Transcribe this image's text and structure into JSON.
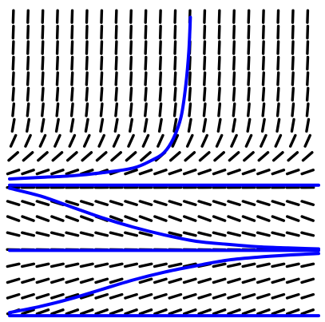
{
  "chart_data": {
    "type": "slope_field",
    "title": "",
    "xlabel": "",
    "ylabel": "",
    "grid": false,
    "legend": "none",
    "colors": {
      "background": "#ffffff",
      "segment": "#000000",
      "solution": "#0000ff"
    },
    "xlim": [
      0,
      10
    ],
    "ylim": [
      0,
      10
    ],
    "equation_form": "dy/dx = f(y)",
    "equilibria": [
      {
        "y": 0.1
      },
      {
        "y": 2.2
      },
      {
        "y": 4.3
      }
    ],
    "slope_by_y": [
      {
        "y": 0.45,
        "slope": 0.35
      },
      {
        "y": 0.95,
        "slope": 0.28
      },
      {
        "y": 1.45,
        "slope": 0.3
      },
      {
        "y": 1.95,
        "slope": 0.15
      },
      {
        "y": 2.45,
        "slope": -0.15
      },
      {
        "y": 2.95,
        "slope": -0.32
      },
      {
        "y": 3.45,
        "slope": -0.4
      },
      {
        "y": 3.95,
        "slope": -0.22
      },
      {
        "y": 4.45,
        "slope": 0.2
      },
      {
        "y": 4.95,
        "slope": 0.45
      },
      {
        "y": 5.45,
        "slope": 1.2
      },
      {
        "y": 5.95,
        "slope": 3
      },
      {
        "y": 6.45,
        "slope": 8
      },
      {
        "y": 7.45,
        "slope": 16
      },
      {
        "y": 8.45,
        "slope": 24
      },
      {
        "y": 9.45,
        "slope": 30
      }
    ],
    "solution_curves": [
      {
        "points": [
          [
            0,
            0.2
          ],
          [
            1,
            0.4
          ],
          [
            2,
            0.65
          ],
          [
            3,
            0.95
          ],
          [
            4,
            1.25
          ],
          [
            5,
            1.5
          ],
          [
            6,
            1.7
          ],
          [
            7,
            1.88
          ],
          [
            8,
            1.98
          ],
          [
            9,
            2.05
          ],
          [
            10,
            2.1
          ]
        ]
      },
      {
        "points": [
          [
            0,
            4.2
          ],
          [
            1,
            3.95
          ],
          [
            2,
            3.6
          ],
          [
            3,
            3.25
          ],
          [
            4,
            2.95
          ],
          [
            5,
            2.7
          ],
          [
            6,
            2.5
          ],
          [
            7,
            2.4
          ],
          [
            8,
            2.32
          ],
          [
            9,
            2.28
          ],
          [
            10,
            2.25
          ]
        ]
      },
      {
        "points": [
          [
            0,
            4.5
          ],
          [
            1,
            4.55
          ],
          [
            2,
            4.6
          ],
          [
            3,
            4.7
          ],
          [
            4,
            4.85
          ],
          [
            4.6,
            5.1
          ],
          [
            5,
            5.35
          ],
          [
            5.3,
            5.8
          ],
          [
            5.55,
            6.5
          ],
          [
            5.7,
            7.5
          ],
          [
            5.8,
            8.6
          ],
          [
            5.85,
            9.7
          ]
        ]
      },
      {
        "points": [
          [
            0,
            0.1
          ],
          [
            10,
            0.1
          ]
        ]
      },
      {
        "points": [
          [
            0,
            2.2
          ],
          [
            10,
            2.2
          ]
        ]
      },
      {
        "points": [
          [
            0,
            4.3
          ],
          [
            10,
            4.3
          ]
        ]
      }
    ]
  }
}
